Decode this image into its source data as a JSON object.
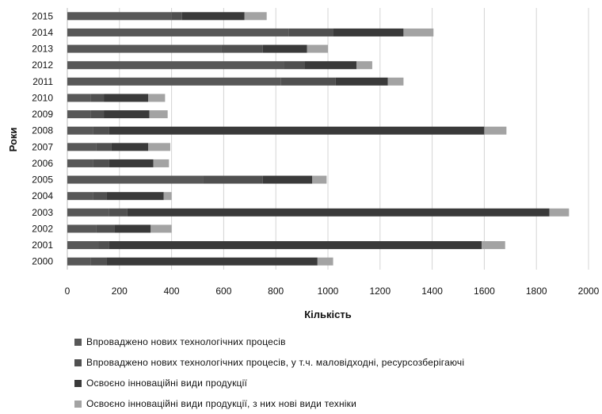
{
  "chart_data": {
    "type": "bar",
    "orientation": "horizontal",
    "stacked": true,
    "categories": [
      "2000",
      "2001",
      "2002",
      "2003",
      "2004",
      "2005",
      "2006",
      "2007",
      "2008",
      "2009",
      "2010",
      "2011",
      "2012",
      "2013",
      "2014",
      "2015"
    ],
    "series": [
      {
        "name": "Впроваджено нових технологічних процесів",
        "color": "#585858",
        "values": [
          90,
          120,
          110,
          160,
          100,
          520,
          100,
          110,
          100,
          90,
          90,
          820,
          830,
          590,
          850,
          400
        ]
      },
      {
        "name": "Впроваджено нових технологічних процесів, у т.ч. маловідходні, ресурсозберігаючі",
        "color": "#505050",
        "values": [
          60,
          40,
          70,
          70,
          50,
          230,
          60,
          60,
          60,
          50,
          50,
          210,
          80,
          160,
          170,
          40
        ]
      },
      {
        "name": "Освоєно інноваційні види продукції",
        "color": "#3a3a3a",
        "values": [
          810,
          1430,
          140,
          1620,
          220,
          190,
          170,
          140,
          1440,
          175,
          170,
          200,
          200,
          170,
          270,
          240
        ]
      },
      {
        "name": "Освоєно інноваційні види продукції, з них нові види техніки",
        "color": "#a3a3a3",
        "values": [
          60,
          90,
          80,
          75,
          30,
          55,
          60,
          85,
          85,
          70,
          65,
          60,
          60,
          80,
          115,
          85
        ]
      }
    ],
    "xlabel": "Кількість",
    "ylabel": "Роки",
    "xlim": [
      0,
      2000
    ],
    "xticks": [
      "0",
      "200",
      "400",
      "600",
      "800",
      "1000",
      "1200",
      "1400",
      "1600",
      "1800",
      "2000"
    ],
    "grid": "vertical",
    "legend_position": "bottom"
  }
}
